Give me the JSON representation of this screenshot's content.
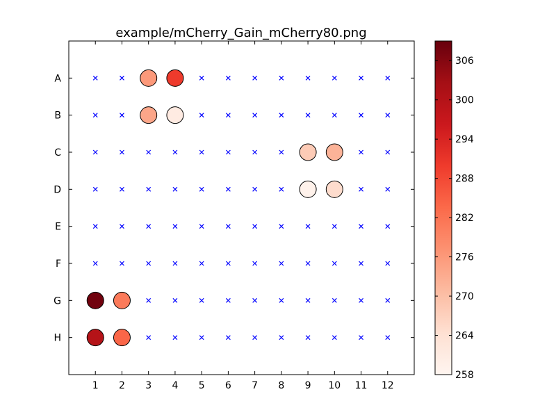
{
  "chart_data": {
    "type": "scatter",
    "title": "example/mCherry_Gain_mCherry80.png",
    "xlabel": "",
    "ylabel": "",
    "x_ticks": [
      1,
      2,
      3,
      4,
      5,
      6,
      7,
      8,
      9,
      10,
      11,
      12
    ],
    "xlim": [
      0,
      13
    ],
    "rows": [
      "A",
      "B",
      "C",
      "D",
      "E",
      "F",
      "G",
      "H"
    ],
    "grid": false,
    "empty_marker": "x",
    "empty_marker_color": "#0000ff",
    "colormap": "Reds",
    "colorbar": {
      "min": 258,
      "max": 309,
      "ticks": [
        258,
        264,
        270,
        276,
        282,
        288,
        294,
        300,
        306
      ],
      "placement": "right"
    },
    "wells": [
      {
        "row": "A",
        "col": 3,
        "value": 276
      },
      {
        "row": "A",
        "col": 4,
        "value": 290
      },
      {
        "row": "B",
        "col": 3,
        "value": 274
      },
      {
        "row": "B",
        "col": 4,
        "value": 261
      },
      {
        "row": "C",
        "col": 9,
        "value": 268
      },
      {
        "row": "C",
        "col": 10,
        "value": 272
      },
      {
        "row": "D",
        "col": 9,
        "value": 259
      },
      {
        "row": "D",
        "col": 10,
        "value": 265
      },
      {
        "row": "G",
        "col": 1,
        "value": 308
      },
      {
        "row": "G",
        "col": 2,
        "value": 281
      },
      {
        "row": "H",
        "col": 1,
        "value": 300
      },
      {
        "row": "H",
        "col": 2,
        "value": 284
      }
    ]
  }
}
